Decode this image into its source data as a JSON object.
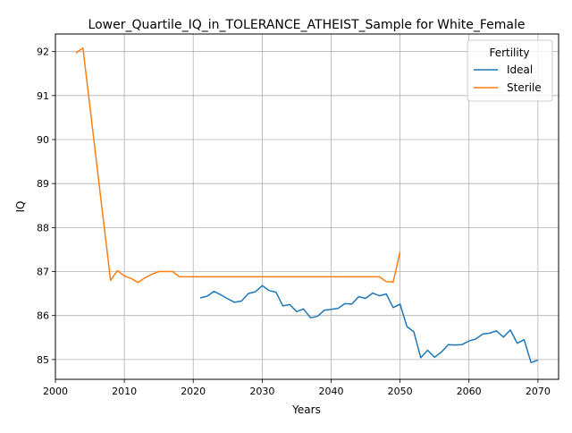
{
  "chart_data": {
    "type": "line",
    "title": "Lower_Quartile_IQ_in_TOLERANCE_ATHEIST_Sample for White_Female",
    "xlabel": "Years",
    "ylabel": "IQ",
    "xlim": [
      2000,
      2073
    ],
    "ylim": [
      84.55,
      92.4
    ],
    "xticks": [
      2000,
      2010,
      2020,
      2030,
      2040,
      2050,
      2060,
      2070
    ],
    "yticks": [
      85,
      86,
      87,
      88,
      89,
      90,
      91,
      92
    ],
    "grid": true,
    "legend": {
      "title": "Fertility",
      "position": "top-right"
    },
    "series": [
      {
        "name": "Ideal",
        "color": "#1f77b4",
        "x": [
          2021,
          2022,
          2023,
          2024,
          2025,
          2026,
          2027,
          2028,
          2029,
          2030,
          2031,
          2032,
          2033,
          2034,
          2035,
          2036,
          2037,
          2038,
          2039,
          2040,
          2041,
          2042,
          2043,
          2044,
          2045,
          2046,
          2047,
          2048,
          2049,
          2050,
          2051,
          2052,
          2053,
          2054,
          2055,
          2056,
          2057,
          2058,
          2059,
          2060,
          2061,
          2062,
          2063,
          2064,
          2065,
          2066,
          2067,
          2068,
          2069,
          2070
        ],
        "y": [
          86.4,
          86.44,
          86.55,
          86.47,
          86.38,
          86.3,
          86.33,
          86.5,
          86.54,
          86.68,
          86.57,
          86.53,
          86.22,
          86.25,
          86.09,
          86.15,
          85.95,
          85.98,
          86.12,
          86.14,
          86.16,
          86.27,
          86.26,
          86.43,
          86.39,
          86.51,
          86.45,
          86.49,
          86.18,
          86.26,
          85.75,
          85.63,
          85.04,
          85.21,
          85.05,
          85.17,
          85.34,
          85.33,
          85.34,
          85.42,
          85.47,
          85.58,
          85.6,
          85.65,
          85.51,
          85.67,
          85.37,
          85.45,
          84.93,
          84.99
        ]
      },
      {
        "name": "Sterile",
        "color": "#ff7f0e",
        "x": [
          2003,
          2004,
          2008,
          2009,
          2010,
          2011,
          2012,
          2013,
          2014,
          2015,
          2016,
          2017,
          2018,
          2019,
          2020,
          2021,
          2022,
          2023,
          2024,
          2025,
          2026,
          2027,
          2028,
          2029,
          2030,
          2031,
          2032,
          2033,
          2034,
          2035,
          2036,
          2037,
          2038,
          2039,
          2040,
          2041,
          2042,
          2043,
          2044,
          2045,
          2046,
          2047,
          2048,
          2049,
          2050
        ],
        "y": [
          91.97,
          92.08,
          86.8,
          87.02,
          86.9,
          86.84,
          86.75,
          86.86,
          86.94,
          87.0,
          87.0,
          87.0,
          86.88,
          86.88,
          86.88,
          86.88,
          86.88,
          86.88,
          86.88,
          86.88,
          86.88,
          86.88,
          86.88,
          86.88,
          86.88,
          86.88,
          86.88,
          86.88,
          86.88,
          86.88,
          86.88,
          86.88,
          86.88,
          86.88,
          86.88,
          86.88,
          86.88,
          86.88,
          86.88,
          86.88,
          86.88,
          86.88,
          86.77,
          86.76,
          87.45
        ]
      }
    ]
  }
}
